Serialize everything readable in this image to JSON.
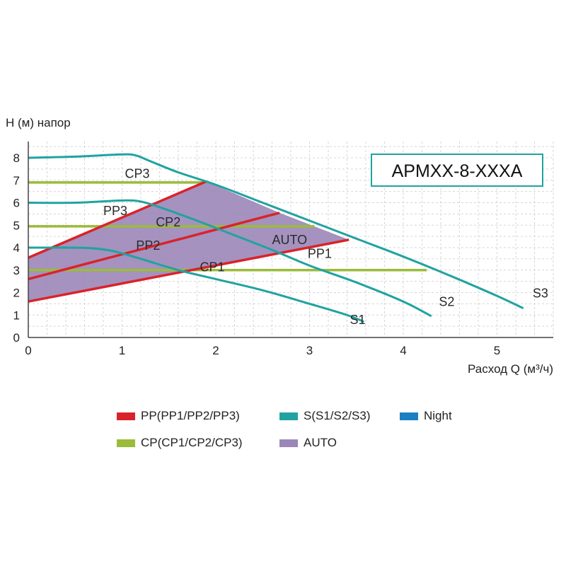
{
  "chart_data": {
    "type": "line",
    "title": "",
    "model_label": "APMXX-8-XXXA",
    "ylabel": "H (м) напор",
    "xlabel": "Расход Q (м³/ч)",
    "xlim": [
      0,
      5.6
    ],
    "ylim": [
      0,
      8.5
    ],
    "x_ticks": [
      "0",
      "1",
      "2",
      "3",
      "4",
      "5"
    ],
    "y_ticks": [
      "0",
      "1",
      "2",
      "3",
      "4",
      "5",
      "6",
      "7",
      "8"
    ],
    "grid": true,
    "colors": {
      "PP": "#d9232b",
      "S": "#20a3a0",
      "Night": "#1b7fc2",
      "CP": "#9bbb3a",
      "AUTO": "#9b86b8"
    },
    "series": [
      {
        "name": "S1",
        "group": "S",
        "x": [
          0,
          0.3,
          0.65,
          0.9,
          1.2,
          1.6,
          2.0,
          2.5,
          3.0,
          3.4,
          3.58
        ],
        "y": [
          4.0,
          4.0,
          3.98,
          3.85,
          3.5,
          3.0,
          2.6,
          2.1,
          1.5,
          1.0,
          0.7
        ]
      },
      {
        "name": "S2",
        "group": "S",
        "x": [
          0,
          0.5,
          1.0,
          1.2,
          1.4,
          1.8,
          2.2,
          2.6,
          3.0,
          3.5,
          4.0,
          4.3
        ],
        "y": [
          6.0,
          6.0,
          6.1,
          6.05,
          5.8,
          5.2,
          4.55,
          3.9,
          3.2,
          2.45,
          1.6,
          0.95
        ]
      },
      {
        "name": "S3",
        "group": "S",
        "x": [
          0,
          0.5,
          1.0,
          1.15,
          1.3,
          1.6,
          2.0,
          2.5,
          3.0,
          3.5,
          4.0,
          4.5,
          5.0,
          5.28
        ],
        "y": [
          8.0,
          8.05,
          8.15,
          8.1,
          7.85,
          7.35,
          6.8,
          6.0,
          5.2,
          4.4,
          3.6,
          2.75,
          1.85,
          1.3
        ]
      },
      {
        "name": "PP1",
        "group": "PP",
        "x": [
          0,
          3.42
        ],
        "y": [
          1.6,
          4.35
        ]
      },
      {
        "name": "PP2",
        "group": "PP",
        "x": [
          0,
          2.68
        ],
        "y": [
          2.6,
          5.55
        ]
      },
      {
        "name": "PP3",
        "group": "PP",
        "x": [
          0,
          1.9
        ],
        "y": [
          3.55,
          6.95
        ]
      },
      {
        "name": "CP1",
        "group": "CP",
        "x": [
          0,
          4.25
        ],
        "y": [
          3.0,
          3.0
        ]
      },
      {
        "name": "CP2",
        "group": "CP",
        "x": [
          0,
          3.05
        ],
        "y": [
          4.95,
          4.95
        ]
      },
      {
        "name": "CP3",
        "group": "CP",
        "x": [
          0,
          1.9
        ],
        "y": [
          6.9,
          6.9
        ]
      }
    ],
    "auto_area": {
      "x": [
        0,
        0,
        1.9,
        2.68,
        3.42
      ],
      "y": [
        1.6,
        3.55,
        6.95,
        5.55,
        4.35
      ]
    },
    "annotations": [
      {
        "text": "CP3",
        "x": 1.03,
        "y": 7.1
      },
      {
        "text": "PP3",
        "x": 0.8,
        "y": 5.45
      },
      {
        "text": "CP2",
        "x": 1.36,
        "y": 4.95
      },
      {
        "text": "PP2",
        "x": 1.15,
        "y": 3.9
      },
      {
        "text": "AUTO",
        "x": 2.6,
        "y": 4.15
      },
      {
        "text": "PP1",
        "x": 2.98,
        "y": 3.55
      },
      {
        "text": "CP1",
        "x": 1.83,
        "y": 2.95
      },
      {
        "text": "S1",
        "x": 3.43,
        "y": 0.6
      },
      {
        "text": "S2",
        "x": 4.38,
        "y": 1.4
      },
      {
        "text": "S3",
        "x": 5.38,
        "y": 1.78
      }
    ],
    "legend": {
      "placement": "bottom",
      "items": [
        {
          "label": "PP(PP1/PP2/PP3)",
          "color": "#d9232b"
        },
        {
          "label": "S(S1/S2/S3)",
          "color": "#20a3a0"
        },
        {
          "label": "Night",
          "color": "#1b7fc2"
        },
        {
          "label": "CP(CP1/CP2/CP3)",
          "color": "#9bbb3a"
        },
        {
          "label": "AUTO",
          "color": "#9b86b8"
        }
      ]
    }
  }
}
